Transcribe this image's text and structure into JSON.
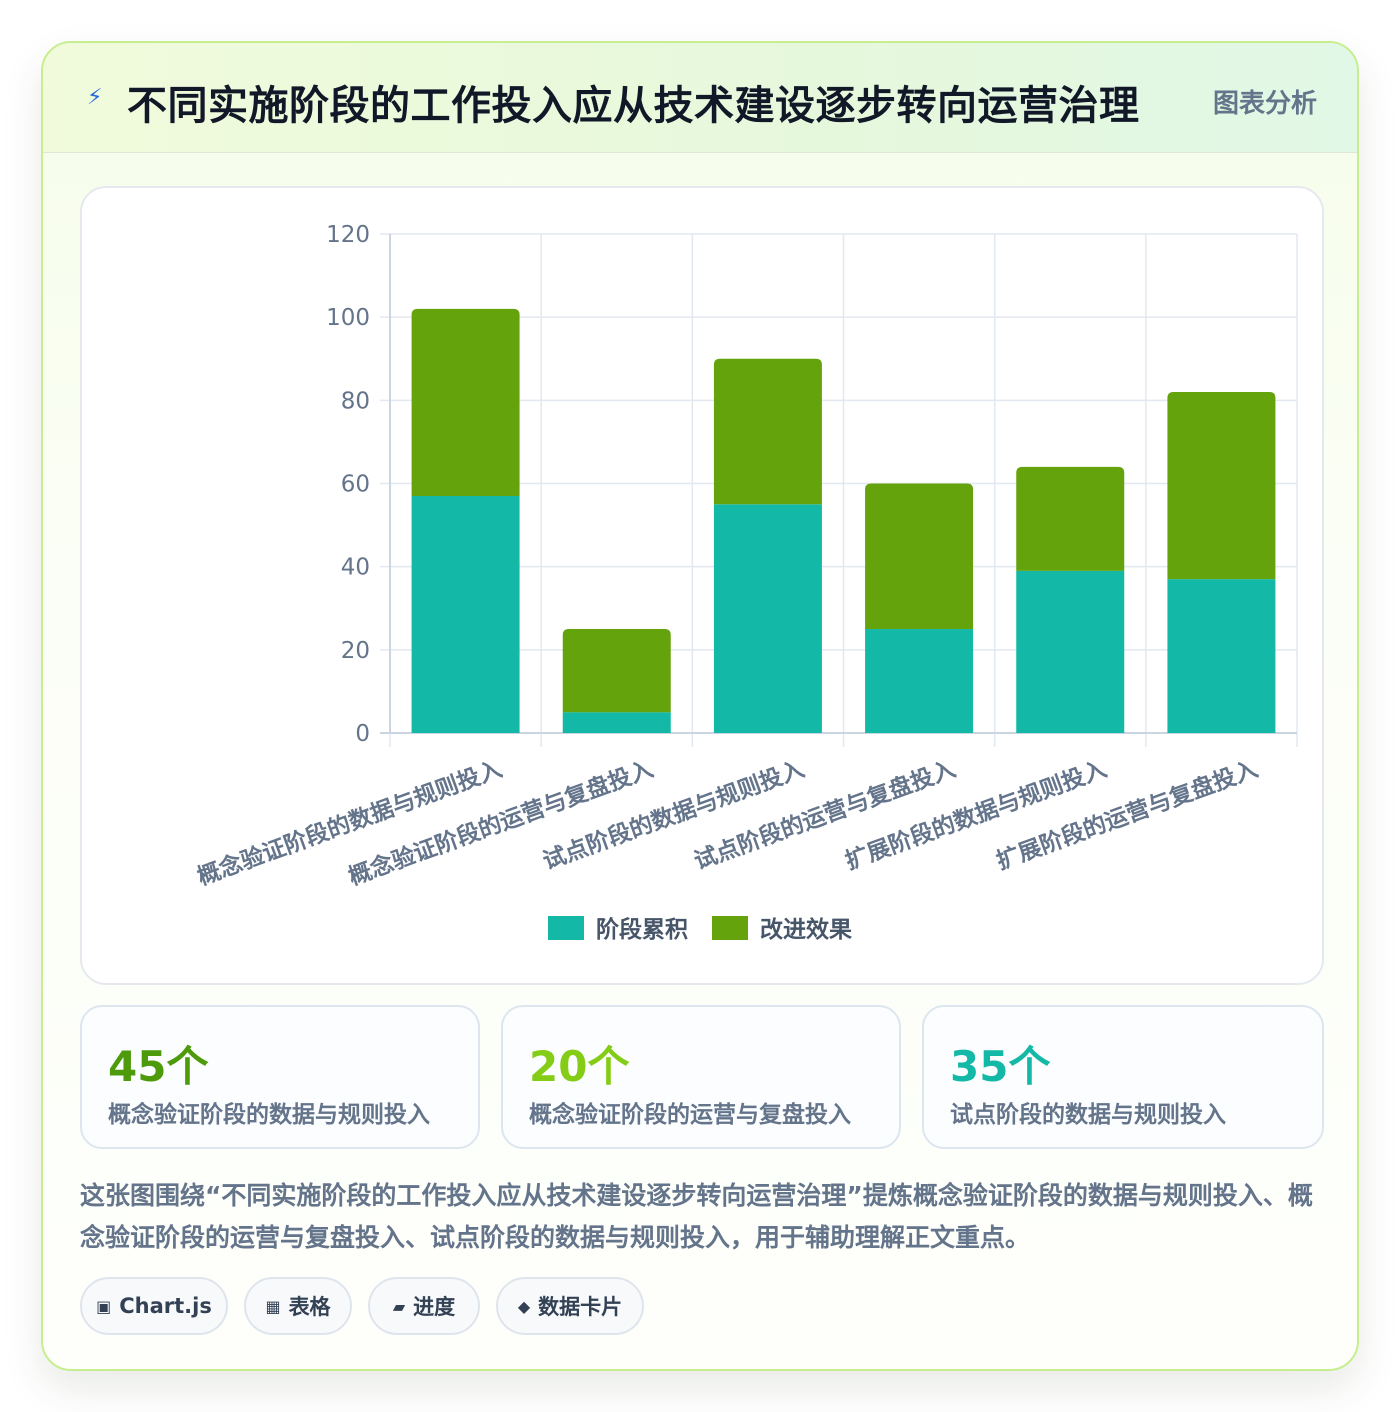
{
  "header": {
    "title": "不同实施阶段的工作投入应从技术建设逐步转向运营治理",
    "tag": "图表分析",
    "icon": "lightning-icon"
  },
  "chart_data": {
    "type": "bar",
    "stacked": true,
    "categories": [
      "概念验证阶段的数据与规则投入",
      "概念验证阶段的运营与复盘投入",
      "试点阶段的数据与规则投入",
      "试点阶段的运营与复盘投入",
      "扩展阶段的数据与规则投入",
      "扩展阶段的运营与复盘投入"
    ],
    "series": [
      {
        "name": "阶段累积",
        "color": "#14b8a6",
        "values": [
          57,
          5,
          55,
          25,
          39,
          37
        ]
      },
      {
        "name": "改进效果",
        "color": "#65a30d",
        "values": [
          45,
          20,
          35,
          35,
          25,
          45
        ]
      }
    ],
    "ylim": [
      0,
      120
    ],
    "yticks": [
      "0",
      "20",
      "40",
      "60",
      "80",
      "100",
      "120"
    ],
    "grid": true,
    "legend": "bottom"
  },
  "stats": [
    {
      "value": "45个",
      "label": "概念验证阶段的数据与规则投入",
      "color": "#4d9a0b"
    },
    {
      "value": "20个",
      "label": "概念验证阶段的运营与复盘投入",
      "color": "#84cc16"
    },
    {
      "value": "35个",
      "label": "试点阶段的数据与规则投入",
      "color": "#14b8a6"
    }
  ],
  "description": "这张图围绕“不同实施阶段的工作投入应从技术建设逐步转向运营治理”提炼概念验证阶段的数据与规则投入、概念验证阶段的运营与复盘投入、试点阶段的数据与规则投入，用于辅助理解正文重点。",
  "chips": [
    {
      "icon": "▣",
      "label": "Chart.js"
    },
    {
      "icon": "▦",
      "label": "表格"
    },
    {
      "icon": "▰",
      "label": "进度"
    },
    {
      "icon": "◆",
      "label": "数据卡片"
    }
  ]
}
